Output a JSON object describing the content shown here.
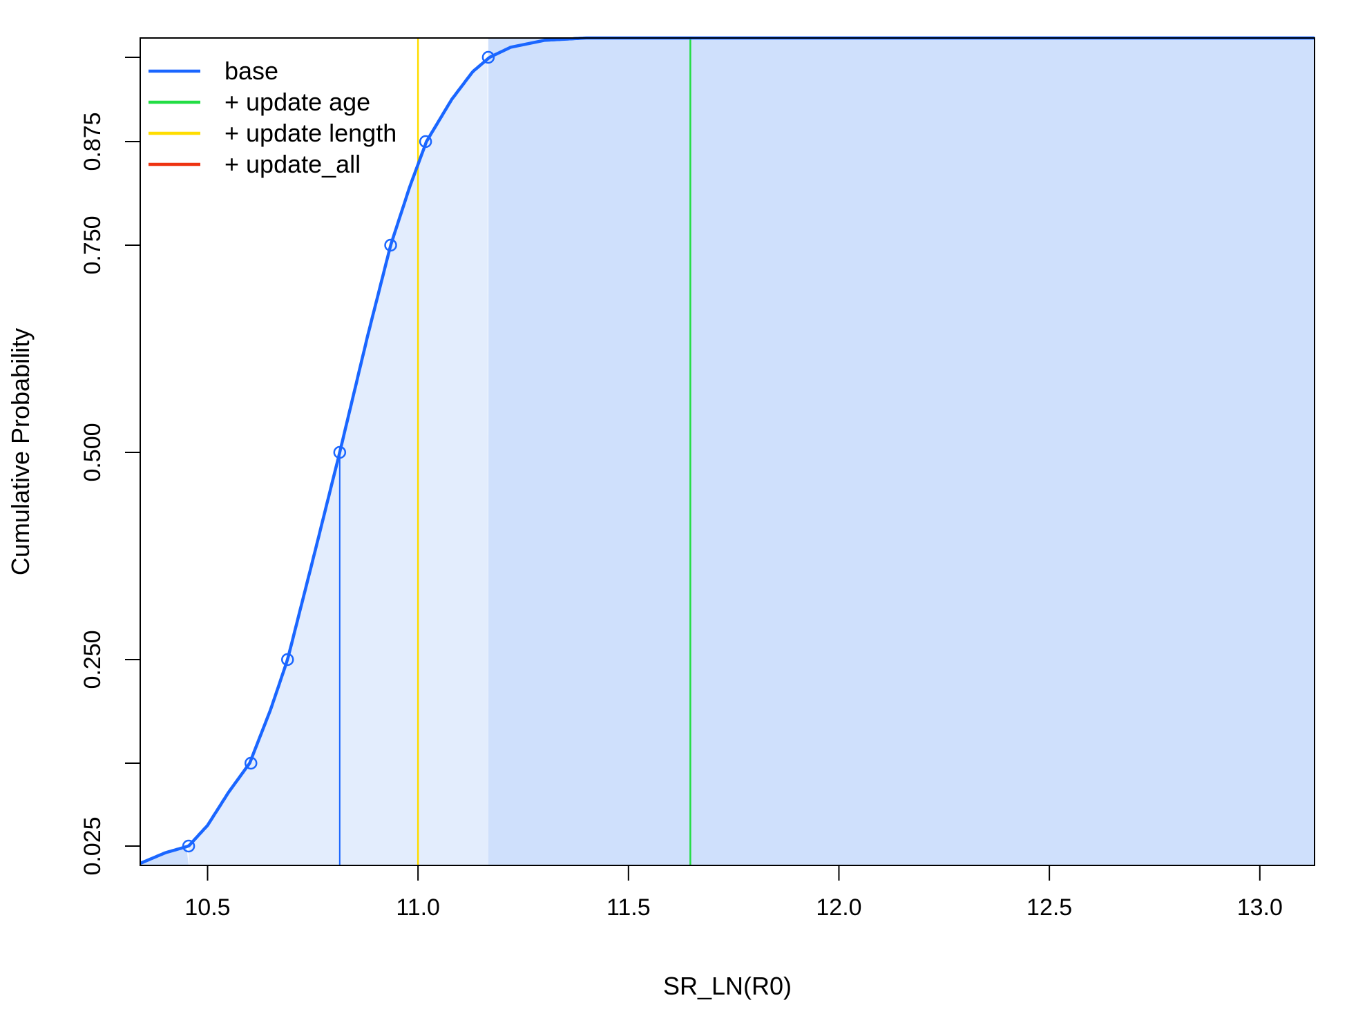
{
  "chart_data": {
    "type": "line",
    "title": "",
    "xlabel": "SR_LN(R0)",
    "ylabel": "Cumulative Probability",
    "xlim": [
      10.34,
      13.13
    ],
    "ylim": [
      0.0,
      1.0
    ],
    "x_ticks": [
      10.5,
      11.0,
      11.5,
      12.0,
      12.5,
      13.0
    ],
    "x_tick_labels": [
      "10.5",
      "11.0",
      "11.5",
      "12.0",
      "12.5",
      "13.0"
    ],
    "y_ticks": [
      0.025,
      0.125,
      0.25,
      0.5,
      0.75,
      0.875,
      0.975
    ],
    "y_tick_labels": [
      "0.025",
      "",
      "0.250",
      "0.500",
      "0.750",
      "0.875",
      ""
    ],
    "grid": false,
    "legend_position": "top-left",
    "series": [
      {
        "name": "base",
        "color": "#1a66ff",
        "x": [
          10.34,
          10.4,
          10.455,
          10.5,
          10.55,
          10.6,
          10.65,
          10.69,
          10.75,
          10.814,
          10.88,
          10.935,
          10.98,
          11.02,
          11.08,
          11.13,
          11.17,
          11.22,
          11.3,
          11.4
        ],
        "y": [
          0.012,
          0.02,
          0.025,
          0.05,
          0.09,
          0.125,
          0.19,
          0.25,
          0.37,
          0.5,
          0.64,
          0.75,
          0.82,
          0.875,
          0.925,
          0.958,
          0.975,
          0.988,
          0.997,
          1.0
        ]
      },
      {
        "name": "+ update age",
        "color": "#22dd44",
        "vline": 11.647
      },
      {
        "name": " + update length",
        "color": "#ffdd00",
        "vline": 11.0
      },
      {
        "name": " + update_all",
        "color": "#ee3311"
      }
    ],
    "quantile_points": {
      "x": [
        10.455,
        10.603,
        10.69,
        10.814,
        10.935,
        11.018,
        11.167
      ],
      "y": [
        0.025,
        0.125,
        0.25,
        0.5,
        0.75,
        0.875,
        0.975
      ]
    },
    "median": {
      "x": 10.814,
      "y": 0.5
    },
    "shaded_regions": {
      "interval_95": [
        10.455,
        11.167
      ],
      "interval_95_color": "#e3edfd",
      "upper_tail_color": "#cfe0fc",
      "lower_tail_color": "#cfe0fc"
    }
  }
}
